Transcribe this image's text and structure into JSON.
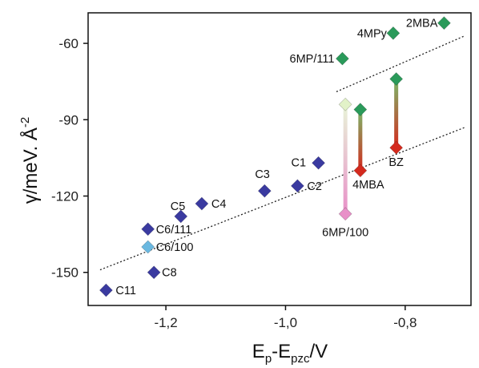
{
  "chart_data": {
    "type": "scatter",
    "xlabel": "E",
    "xlabel_sub1": "p",
    "xlabel_mid": "-E",
    "xlabel_sub2": "pzc",
    "xlabel_tail": "/V",
    "ylabel": "γ/meV. Å",
    "ylabel_sup": "-2",
    "xlim": [
      -1.33,
      -0.69
    ],
    "ylim": [
      -163,
      -48
    ],
    "xticks": [
      {
        "value": -1.2,
        "label": "-1,2"
      },
      {
        "value": -1.0,
        "label": "-1,0"
      },
      {
        "value": -0.8,
        "label": "-0,8"
      }
    ],
    "yticks": [
      {
        "value": -60,
        "label": "-60"
      },
      {
        "value": -90,
        "label": "-90"
      },
      {
        "value": -120,
        "label": "-120"
      },
      {
        "value": -150,
        "label": "-150"
      }
    ],
    "points": [
      {
        "label": "C11",
        "x": -1.3,
        "y": -157,
        "color": "#3a3aa0"
      },
      {
        "label": "C8",
        "x": -1.22,
        "y": -150,
        "color": "#3a3aa0"
      },
      {
        "label": "C6/100",
        "x": -1.23,
        "y": -140,
        "color": "#6ab8e0"
      },
      {
        "label": "C6/111",
        "x": -1.23,
        "y": -133,
        "color": "#3a3aa0"
      },
      {
        "label": "C5",
        "x": -1.175,
        "y": -128,
        "color": "#3a3aa0"
      },
      {
        "label": "C4",
        "x": -1.14,
        "y": -123,
        "color": "#3a3aa0"
      },
      {
        "label": "C3",
        "x": -1.035,
        "y": -118,
        "color": "#3a3aa0"
      },
      {
        "label": "C2",
        "x": -0.98,
        "y": -116,
        "color": "#3a3aa0"
      },
      {
        "label": "C1",
        "x": -0.945,
        "y": -107,
        "color": "#3a3aa0"
      },
      {
        "label": "",
        "x": -0.9,
        "y": -84,
        "color": "#e2f2c8"
      },
      {
        "label": "6MP/100",
        "x": -0.9,
        "y": -127,
        "color": "#e890c8"
      },
      {
        "label": "",
        "x": -0.875,
        "y": -86,
        "color": "#2a9a5a"
      },
      {
        "label": "4MBA",
        "x": -0.875,
        "y": -110,
        "color": "#d42a1e"
      },
      {
        "label": "",
        "x": -0.815,
        "y": -74,
        "color": "#2a9a5a"
      },
      {
        "label": "BZ",
        "x": -0.815,
        "y": -101,
        "color": "#d42a1e"
      },
      {
        "label": "6MP/111",
        "x": -0.905,
        "y": -66,
        "color": "#2a9a5a"
      },
      {
        "label": "4MPy",
        "x": -0.82,
        "y": -56,
        "color": "#2a9a5a"
      },
      {
        "label": "2MBA",
        "x": -0.735,
        "y": -52,
        "color": "#2a9a5a"
      }
    ],
    "gradient_bars": [
      {
        "x": -0.9,
        "y_top": -84,
        "y_bottom": -127,
        "color_top": "#e8f4d8",
        "color_bottom": "#e890c8"
      },
      {
        "x": -0.875,
        "y_top": -86,
        "y_bottom": -110,
        "color_top": "#7ab86a",
        "color_bottom": "#d42a1e"
      },
      {
        "x": -0.815,
        "y_top": -74,
        "y_bottom": -101,
        "color_top": "#7ab86a",
        "color_bottom": "#d42a1e"
      }
    ],
    "fit_lines": [
      {
        "x1": -1.31,
        "y1": -149,
        "x2": -0.7,
        "y2": -93
      },
      {
        "x1": -0.915,
        "y1": -79,
        "x2": -0.7,
        "y2": -57
      }
    ]
  }
}
